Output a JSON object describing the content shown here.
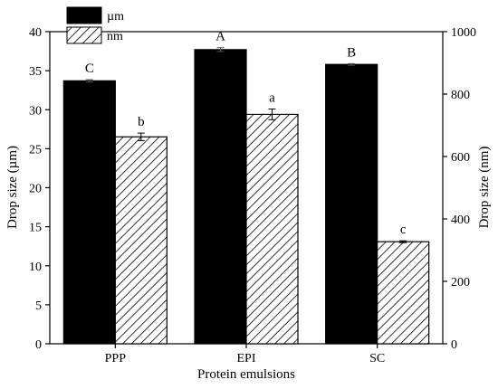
{
  "chart_data": {
    "type": "bar",
    "categories": [
      "PPP",
      "EPI",
      "SC"
    ],
    "xlabel": "Protein emulsions",
    "ylabel_left": "Drop size (µm)",
    "ylabel_right": "Drop size (nm)",
    "ylim_left": [
      0,
      40
    ],
    "ylim_right": [
      0,
      1000
    ],
    "yticks_left": [
      0,
      5,
      10,
      15,
      20,
      25,
      30,
      35,
      40
    ],
    "yticks_right": [
      0,
      200,
      400,
      600,
      800,
      1000
    ],
    "grid": false,
    "legend_position": "top-left",
    "series": [
      {
        "name": "µm",
        "axis": "left",
        "values": [
          33.7,
          37.7,
          35.8
        ],
        "errors": [
          0.15,
          0.25,
          0.1
        ],
        "labels": [
          "C",
          "A",
          "B"
        ],
        "fill": "#000000",
        "pattern": "solid"
      },
      {
        "name": "nm",
        "axis": "right",
        "values": [
          663,
          735,
          327
        ],
        "errors": [
          12,
          17,
          3
        ],
        "labels": [
          "b",
          "a",
          "c"
        ],
        "fill": "#ffffff",
        "pattern": "hatch"
      }
    ]
  }
}
